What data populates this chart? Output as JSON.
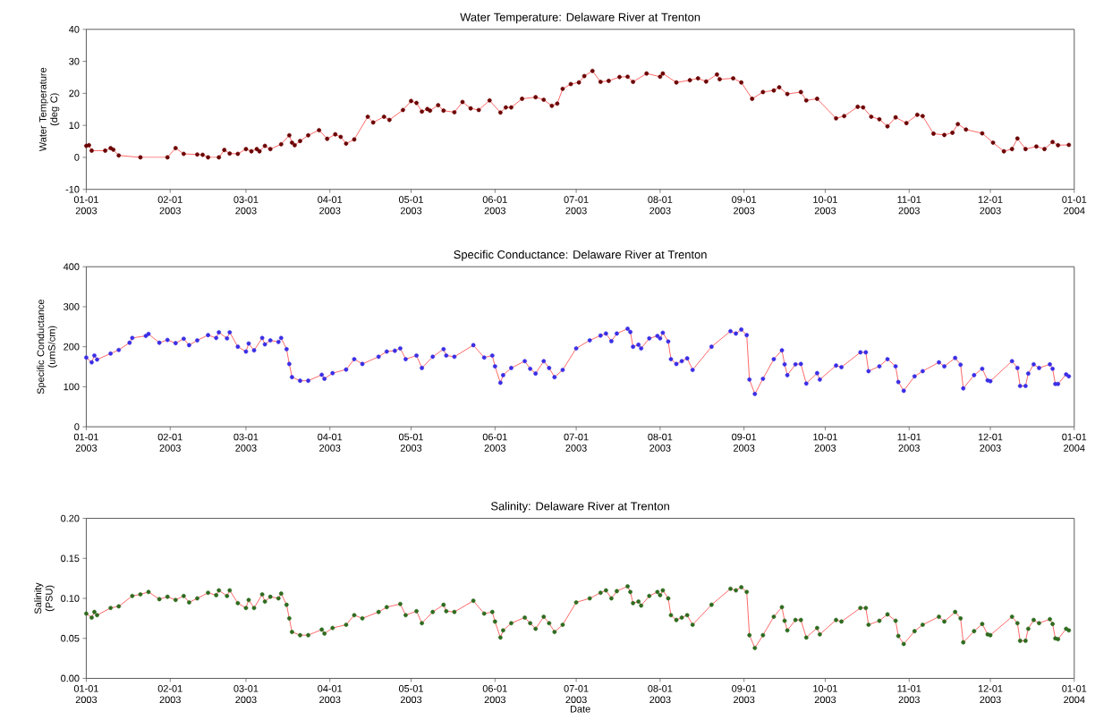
{
  "chart_data": [
    {
      "type": "line",
      "title": "Water Temperature: Delaware River at Trenton",
      "ylabel": "Water Temperature\n(deg C)",
      "color": "#6b0000",
      "marker": "circle",
      "line_style": "solid",
      "x": [
        "2003-01-01",
        "2003-01-02",
        "2003-01-03",
        "2003-01-08",
        "2003-01-10",
        "2003-01-11",
        "2003-01-13",
        "2003-01-21",
        "2003-01-31",
        "2003-02-03",
        "2003-02-06",
        "2003-02-11",
        "2003-02-13",
        "2003-02-15",
        "2003-02-19",
        "2003-02-21",
        "2003-02-23",
        "2003-02-26",
        "2003-03-01",
        "2003-03-03",
        "2003-03-05",
        "2003-03-06",
        "2003-03-08",
        "2003-03-10",
        "2003-03-14",
        "2003-03-17",
        "2003-03-18",
        "2003-03-19",
        "2003-03-21",
        "2003-03-24",
        "2003-03-28",
        "2003-03-31",
        "2003-04-03",
        "2003-04-05",
        "2003-04-07",
        "2003-04-10",
        "2003-04-15",
        "2003-04-17",
        "2003-04-21",
        "2003-04-23",
        "2003-04-28",
        "2003-05-01",
        "2003-05-03",
        "2003-05-05",
        "2003-05-07",
        "2003-05-08",
        "2003-05-11",
        "2003-05-13",
        "2003-05-17",
        "2003-05-20",
        "2003-05-23",
        "2003-05-26",
        "2003-05-30",
        "2003-06-03",
        "2003-06-05",
        "2003-06-07",
        "2003-06-11",
        "2003-06-16",
        "2003-06-19",
        "2003-06-22",
        "2003-06-24",
        "2003-06-26",
        "2003-06-29",
        "2003-07-02",
        "2003-07-04",
        "2003-07-07",
        "2003-07-10",
        "2003-07-13",
        "2003-07-17",
        "2003-07-20",
        "2003-07-22",
        "2003-07-27",
        "2003-08-01",
        "2003-08-02",
        "2003-08-07",
        "2003-08-12",
        "2003-08-15",
        "2003-08-18",
        "2003-08-22",
        "2003-08-23",
        "2003-08-28",
        "2003-08-31",
        "2003-09-04",
        "2003-09-08",
        "2003-09-12",
        "2003-09-14",
        "2003-09-17",
        "2003-09-22",
        "2003-09-24",
        "2003-09-28",
        "2003-10-05",
        "2003-10-08",
        "2003-10-13",
        "2003-10-15",
        "2003-10-18",
        "2003-10-21",
        "2003-10-24",
        "2003-10-27",
        "2003-10-31",
        "2003-11-04",
        "2003-11-06",
        "2003-11-10",
        "2003-11-14",
        "2003-11-17",
        "2003-11-19",
        "2003-11-22",
        "2003-11-28",
        "2003-12-02",
        "2003-12-06",
        "2003-12-09",
        "2003-12-11",
        "2003-12-14",
        "2003-12-18",
        "2003-12-21",
        "2003-12-24",
        "2003-12-26",
        "2003-12-30"
      ],
      "values": [
        3.6,
        3.8,
        2.1,
        2.1,
        2.9,
        2.4,
        0.6,
        0,
        0,
        2.9,
        1.1,
        0.9,
        0.8,
        0,
        0,
        2.3,
        1.2,
        1.1,
        2.6,
        1.9,
        2.6,
        1.9,
        3.6,
        2.6,
        4.1,
        6.9,
        4.6,
        3.8,
        5.1,
        6.9,
        8.5,
        5.8,
        7.2,
        6.4,
        4.3,
        5.6,
        12.7,
        10.9,
        12.7,
        11.7,
        14.8,
        17.6,
        17,
        14.3,
        15.1,
        14.6,
        16.3,
        14.6,
        14.1,
        17.3,
        15.3,
        14.8,
        17.8,
        14,
        15.6,
        15.6,
        18.3,
        18.8,
        18,
        16.1,
        16.8,
        21.4,
        22.9,
        23.4,
        25.4,
        27,
        23.6,
        23.9,
        25.1,
        25.2,
        23.6,
        26.2,
        25.2,
        26.2,
        23.4,
        24.1,
        24.7,
        23.7,
        25.9,
        24.4,
        24.7,
        23.4,
        18.3,
        20.4,
        20.9,
        21.9,
        19.8,
        20.4,
        17.8,
        18.3,
        12.2,
        12.9,
        15.8,
        15.6,
        12.7,
        11.9,
        9.7,
        12.5,
        10.7,
        13.3,
        12.9,
        7.4,
        7,
        7.7,
        10.4,
        8.7,
        7.5,
        4.6,
        1.9,
        2.6,
        5.9,
        2.6,
        3.4,
        2.6,
        4.8,
        3.8,
        3.9
      ],
      "xlim": [
        "2003-01-01",
        "2004-01-01"
      ],
      "xticks": [
        {
          "value": "2003-01-01",
          "label": "01-01\n2003"
        },
        {
          "value": "2003-02-01",
          "label": "02-01\n2003"
        },
        {
          "value": "2003-03-01",
          "label": "03-01\n2003"
        },
        {
          "value": "2003-04-01",
          "label": "04-01\n2003"
        },
        {
          "value": "2003-05-01",
          "label": "05-01\n2003"
        },
        {
          "value": "2003-06-01",
          "label": "06-01\n2003"
        },
        {
          "value": "2003-07-01",
          "label": "07-01\n2003"
        },
        {
          "value": "2003-08-01",
          "label": "08-01\n2003"
        },
        {
          "value": "2003-09-01",
          "label": "09-01\n2003"
        },
        {
          "value": "2003-10-01",
          "label": "10-01\n2003"
        },
        {
          "value": "2003-11-01",
          "label": "11-01\n2003"
        },
        {
          "value": "2003-12-01",
          "label": "12-01\n2003"
        },
        {
          "value": "2004-01-01",
          "label": "01-01\n2004"
        }
      ],
      "ylim": [
        -10,
        40
      ],
      "yticks": [
        -10,
        0,
        10,
        20,
        30,
        40
      ]
    },
    {
      "type": "line",
      "title": "Specific Conductance: Delaware River at Trenton",
      "ylabel": "Specific Conductance\n(umS/cm)",
      "color": "#3a2ee6",
      "marker": "circle",
      "line_style": "solid",
      "x": [
        "2003-01-01",
        "2003-01-03",
        "2003-01-04",
        "2003-01-05",
        "2003-01-10",
        "2003-01-13",
        "2003-01-17",
        "2003-01-18",
        "2003-01-23",
        "2003-01-24",
        "2003-01-28",
        "2003-01-31",
        "2003-02-03",
        "2003-02-06",
        "2003-02-08",
        "2003-02-11",
        "2003-02-15",
        "2003-02-18",
        "2003-02-19",
        "2003-02-22",
        "2003-02-23",
        "2003-02-26",
        "2003-03-01",
        "2003-03-02",
        "2003-03-04",
        "2003-03-07",
        "2003-03-08",
        "2003-03-10",
        "2003-03-13",
        "2003-03-14",
        "2003-03-16",
        "2003-03-17",
        "2003-03-18",
        "2003-03-21",
        "2003-03-24",
        "2003-03-29",
        "2003-03-30",
        "2003-04-02",
        "2003-04-07",
        "2003-04-10",
        "2003-04-13",
        "2003-04-19",
        "2003-04-22",
        "2003-04-25",
        "2003-04-27",
        "2003-04-29",
        "2003-05-03",
        "2003-05-05",
        "2003-05-09",
        "2003-05-13",
        "2003-05-14",
        "2003-05-17",
        "2003-05-24",
        "2003-05-28",
        "2003-05-31",
        "2003-06-01",
        "2003-06-03",
        "2003-06-04",
        "2003-06-07",
        "2003-06-12",
        "2003-06-14",
        "2003-06-16",
        "2003-06-19",
        "2003-06-21",
        "2003-06-23",
        "2003-06-26",
        "2003-07-01",
        "2003-07-06",
        "2003-07-10",
        "2003-07-12",
        "2003-07-14",
        "2003-07-16",
        "2003-07-20",
        "2003-07-21",
        "2003-07-22",
        "2003-07-24",
        "2003-07-25",
        "2003-07-28",
        "2003-07-31",
        "2003-08-01",
        "2003-08-02",
        "2003-08-04",
        "2003-08-05",
        "2003-08-07",
        "2003-08-09",
        "2003-08-11",
        "2003-08-13",
        "2003-08-20",
        "2003-08-27",
        "2003-08-29",
        "2003-08-31",
        "2003-09-02",
        "2003-09-03",
        "2003-09-05",
        "2003-09-08",
        "2003-09-12",
        "2003-09-15",
        "2003-09-16",
        "2003-09-17",
        "2003-09-20",
        "2003-09-22",
        "2003-09-24",
        "2003-09-28",
        "2003-09-29",
        "2003-10-05",
        "2003-10-07",
        "2003-10-14",
        "2003-10-16",
        "2003-10-17",
        "2003-10-21",
        "2003-10-24",
        "2003-10-27",
        "2003-10-28",
        "2003-10-30",
        "2003-11-03",
        "2003-11-06",
        "2003-11-12",
        "2003-11-14",
        "2003-11-18",
        "2003-11-20",
        "2003-11-21",
        "2003-11-25",
        "2003-11-28",
        "2003-11-30",
        "2003-12-01",
        "2003-12-09",
        "2003-12-11",
        "2003-12-12",
        "2003-12-14",
        "2003-12-15",
        "2003-12-17",
        "2003-12-19",
        "2003-12-23",
        "2003-12-24",
        "2003-12-25",
        "2003-12-26",
        "2003-12-29",
        "2003-12-30"
      ],
      "values": [
        173,
        161,
        178,
        168,
        183,
        192,
        210,
        222,
        227,
        232,
        210,
        217,
        209,
        220,
        204,
        216,
        229,
        222,
        236,
        221,
        236,
        200,
        188,
        208,
        191,
        222,
        206,
        216,
        212,
        222,
        194,
        157,
        124,
        115,
        115,
        130,
        120,
        134,
        143,
        169,
        157,
        175,
        188,
        190,
        196,
        169,
        178,
        147,
        175,
        194,
        178,
        175,
        204,
        173,
        178,
        151,
        110,
        129,
        147,
        164,
        145,
        133,
        164,
        147,
        124,
        142,
        196,
        216,
        228,
        233,
        214,
        233,
        245,
        237,
        200,
        205,
        196,
        221,
        227,
        221,
        235,
        213,
        169,
        157,
        164,
        171,
        142,
        200,
        239,
        233,
        243,
        229,
        118,
        82,
        120,
        169,
        191,
        156,
        129,
        156,
        157,
        108,
        134,
        118,
        153,
        149,
        186,
        186,
        139,
        151,
        169,
        151,
        112,
        90,
        126,
        139,
        161,
        151,
        172,
        155,
        96,
        129,
        145,
        116,
        114,
        164,
        147,
        102,
        102,
        133,
        156,
        147,
        156,
        145,
        107,
        107,
        131,
        126
      ],
      "xlim": [
        "2003-01-01",
        "2004-01-01"
      ],
      "xticks": [
        {
          "value": "2003-01-01",
          "label": "01-01\n2003"
        },
        {
          "value": "2003-02-01",
          "label": "02-01\n2003"
        },
        {
          "value": "2003-03-01",
          "label": "03-01\n2003"
        },
        {
          "value": "2003-04-01",
          "label": "04-01\n2003"
        },
        {
          "value": "2003-05-01",
          "label": "05-01\n2003"
        },
        {
          "value": "2003-06-01",
          "label": "06-01\n2003"
        },
        {
          "value": "2003-07-01",
          "label": "07-01\n2003"
        },
        {
          "value": "2003-08-01",
          "label": "08-01\n2003"
        },
        {
          "value": "2003-09-01",
          "label": "09-01\n2003"
        },
        {
          "value": "2003-10-01",
          "label": "10-01\n2003"
        },
        {
          "value": "2003-11-01",
          "label": "11-01\n2003"
        },
        {
          "value": "2003-12-01",
          "label": "12-01\n2003"
        },
        {
          "value": "2004-01-01",
          "label": "01-01\n2004"
        }
      ],
      "ylim": [
        0,
        400
      ],
      "yticks": [
        0,
        100,
        200,
        300,
        400
      ]
    },
    {
      "type": "line",
      "title": "Salinity: Delaware River at Trenton",
      "xlabel": "Date",
      "ylabel": "Salinity\n(PSU)",
      "color": "#2e6b1e",
      "marker": "circle",
      "line_style": "solid",
      "x": [
        "2003-01-01",
        "2003-01-03",
        "2003-01-04",
        "2003-01-05",
        "2003-01-10",
        "2003-01-13",
        "2003-01-18",
        "2003-01-21",
        "2003-01-24",
        "2003-01-28",
        "2003-01-31",
        "2003-02-03",
        "2003-02-06",
        "2003-02-08",
        "2003-02-11",
        "2003-02-15",
        "2003-02-18",
        "2003-02-19",
        "2003-02-22",
        "2003-02-23",
        "2003-02-26",
        "2003-03-01",
        "2003-03-02",
        "2003-03-04",
        "2003-03-07",
        "2003-03-08",
        "2003-03-10",
        "2003-03-13",
        "2003-03-14",
        "2003-03-16",
        "2003-03-17",
        "2003-03-18",
        "2003-03-21",
        "2003-03-24",
        "2003-03-29",
        "2003-03-30",
        "2003-04-02",
        "2003-04-07",
        "2003-04-10",
        "2003-04-13",
        "2003-04-19",
        "2003-04-22",
        "2003-04-27",
        "2003-04-29",
        "2003-05-03",
        "2003-05-05",
        "2003-05-09",
        "2003-05-13",
        "2003-05-14",
        "2003-05-17",
        "2003-05-24",
        "2003-05-28",
        "2003-05-31",
        "2003-06-01",
        "2003-06-03",
        "2003-06-04",
        "2003-06-07",
        "2003-06-12",
        "2003-06-14",
        "2003-06-16",
        "2003-06-19",
        "2003-06-21",
        "2003-06-23",
        "2003-06-26",
        "2003-07-01",
        "2003-07-06",
        "2003-07-10",
        "2003-07-12",
        "2003-07-14",
        "2003-07-16",
        "2003-07-20",
        "2003-07-21",
        "2003-07-22",
        "2003-07-24",
        "2003-07-25",
        "2003-07-28",
        "2003-07-31",
        "2003-08-01",
        "2003-08-02",
        "2003-08-04",
        "2003-08-05",
        "2003-08-07",
        "2003-08-09",
        "2003-08-11",
        "2003-08-13",
        "2003-08-20",
        "2003-08-27",
        "2003-08-29",
        "2003-08-31",
        "2003-09-02",
        "2003-09-03",
        "2003-09-05",
        "2003-09-08",
        "2003-09-12",
        "2003-09-15",
        "2003-09-16",
        "2003-09-17",
        "2003-09-20",
        "2003-09-22",
        "2003-09-24",
        "2003-09-28",
        "2003-09-29",
        "2003-10-05",
        "2003-10-07",
        "2003-10-14",
        "2003-10-16",
        "2003-10-17",
        "2003-10-21",
        "2003-10-24",
        "2003-10-27",
        "2003-10-28",
        "2003-10-30",
        "2003-11-03",
        "2003-11-06",
        "2003-11-12",
        "2003-11-14",
        "2003-11-18",
        "2003-11-20",
        "2003-11-21",
        "2003-11-25",
        "2003-11-28",
        "2003-11-30",
        "2003-12-01",
        "2003-12-09",
        "2003-12-11",
        "2003-12-12",
        "2003-12-14",
        "2003-12-15",
        "2003-12-17",
        "2003-12-19",
        "2003-12-23",
        "2003-12-24",
        "2003-12-25",
        "2003-12-26",
        "2003-12-29",
        "2003-12-30"
      ],
      "values": [
        0.081,
        0.076,
        0.083,
        0.079,
        0.088,
        0.09,
        0.103,
        0.105,
        0.108,
        0.099,
        0.102,
        0.098,
        0.103,
        0.095,
        0.1,
        0.107,
        0.104,
        0.11,
        0.103,
        0.11,
        0.094,
        0.088,
        0.098,
        0.088,
        0.105,
        0.096,
        0.102,
        0.1,
        0.106,
        0.092,
        0.075,
        0.058,
        0.054,
        0.054,
        0.061,
        0.056,
        0.063,
        0.067,
        0.079,
        0.075,
        0.083,
        0.089,
        0.093,
        0.079,
        0.084,
        0.069,
        0.083,
        0.092,
        0.084,
        0.083,
        0.097,
        0.081,
        0.083,
        0.071,
        0.051,
        0.06,
        0.069,
        0.076,
        0.069,
        0.062,
        0.077,
        0.069,
        0.058,
        0.067,
        0.095,
        0.1,
        0.107,
        0.11,
        0.1,
        0.109,
        0.115,
        0.108,
        0.094,
        0.096,
        0.091,
        0.103,
        0.108,
        0.104,
        0.11,
        0.1,
        0.079,
        0.073,
        0.076,
        0.079,
        0.067,
        0.092,
        0.112,
        0.11,
        0.114,
        0.108,
        0.054,
        0.038,
        0.054,
        0.077,
        0.089,
        0.072,
        0.06,
        0.073,
        0.073,
        0.051,
        0.063,
        0.055,
        0.073,
        0.071,
        0.088,
        0.088,
        0.067,
        0.072,
        0.08,
        0.072,
        0.053,
        0.043,
        0.059,
        0.067,
        0.077,
        0.071,
        0.083,
        0.075,
        0.045,
        0.059,
        0.068,
        0.055,
        0.054,
        0.077,
        0.069,
        0.047,
        0.047,
        0.062,
        0.073,
        0.069,
        0.074,
        0.068,
        0.05,
        0.049,
        0.062,
        0.06
      ],
      "xlim": [
        "2003-01-01",
        "2004-01-01"
      ],
      "xticks": [
        {
          "value": "2003-01-01",
          "label": "01-01\n2003"
        },
        {
          "value": "2003-02-01",
          "label": "02-01\n2003"
        },
        {
          "value": "2003-03-01",
          "label": "03-01\n2003"
        },
        {
          "value": "2003-04-01",
          "label": "04-01\n2003"
        },
        {
          "value": "2003-05-01",
          "label": "05-01\n2003"
        },
        {
          "value": "2003-06-01",
          "label": "06-01\n2003"
        },
        {
          "value": "2003-07-01",
          "label": "07-01\n2003"
        },
        {
          "value": "2003-08-01",
          "label": "08-01\n2003"
        },
        {
          "value": "2003-09-01",
          "label": "09-01\n2003"
        },
        {
          "value": "2003-10-01",
          "label": "10-01\n2003"
        },
        {
          "value": "2003-11-01",
          "label": "11-01\n2003"
        },
        {
          "value": "2003-12-01",
          "label": "12-01\n2003"
        },
        {
          "value": "2004-01-01",
          "label": "01-01\n2004"
        }
      ],
      "ylim": [
        0,
        0.2
      ],
      "yticks": [
        {
          "value": 0,
          "label": "0.00"
        },
        {
          "value": 0.05,
          "label": "0.05"
        },
        {
          "value": 0.1,
          "label": "0.10"
        },
        {
          "value": 0.15,
          "label": "0.15"
        },
        {
          "value": 0.2,
          "label": "0.20"
        }
      ]
    }
  ]
}
